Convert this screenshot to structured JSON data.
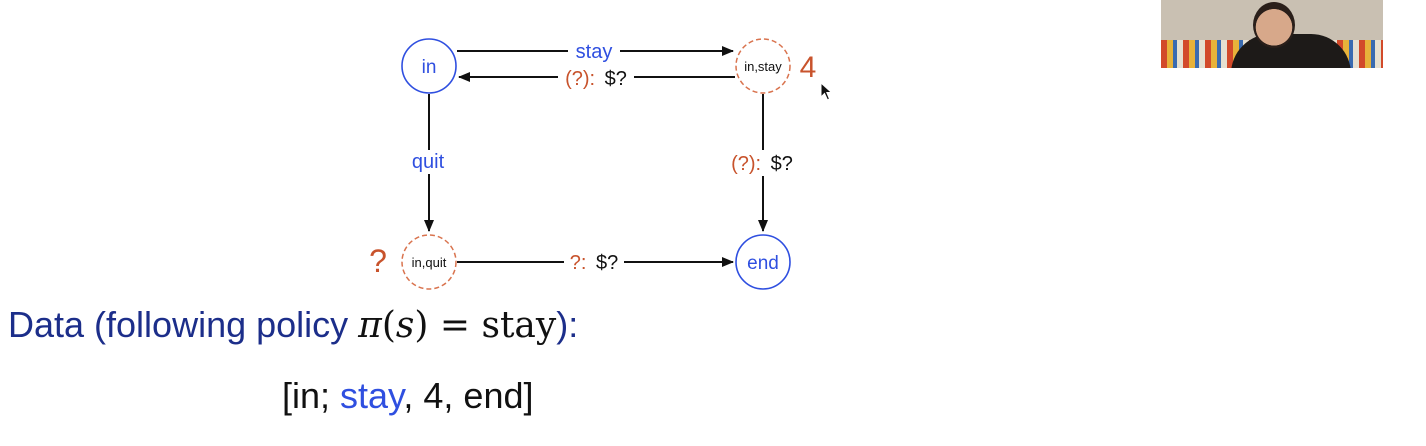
{
  "diagram": {
    "nodes": {
      "in": "in",
      "in_stay": "in,stay",
      "in_quit": "in,quit",
      "end": "end"
    },
    "edges": {
      "stay": "stay",
      "back_prob": "(?):",
      "back_reward": "$?",
      "quit": "quit",
      "right_prob": "(?):",
      "right_reward": "$?",
      "bottom_prob": "?:",
      "bottom_reward": "$?"
    },
    "annotations": {
      "stay_value": "4",
      "quit_value": "?"
    }
  },
  "heading": {
    "prefix": "Data (following policy ",
    "pi": "π",
    "open": "(",
    "var": "s",
    "close": ")",
    "eq": " = ",
    "action": "stay",
    "suffix": "):"
  },
  "episode": {
    "start": "[in; ",
    "action": "stay",
    "rest": ", 4, end]"
  },
  "colors": {
    "blue_node": "#2f4fe0",
    "orange_dashed": "#d9734e",
    "orange_text": "#c8532c",
    "heading_blue": "#1c2e8a"
  }
}
